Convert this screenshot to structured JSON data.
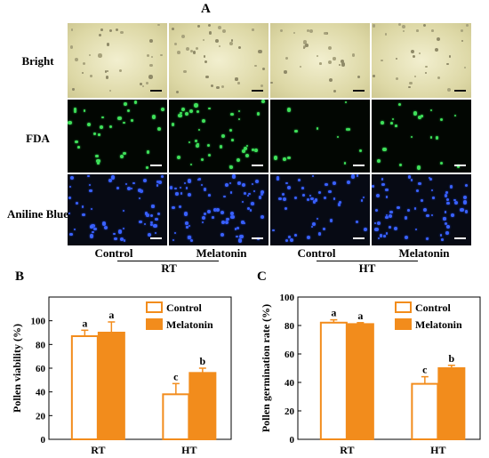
{
  "panel_a": {
    "letter": "A",
    "rows": [
      "Bright",
      "FDA",
      "Aniline Blue"
    ],
    "columns": [
      "Control",
      "Melatonin",
      "Control",
      "Melatonin"
    ],
    "groups": [
      "RT",
      "HT"
    ]
  },
  "panel_b": {
    "letter": "B"
  },
  "panel_c": {
    "letter": "C"
  },
  "chart_data": [
    {
      "type": "bar",
      "panel": "B",
      "categories": [
        "RT",
        "HT"
      ],
      "series": [
        {
          "name": "Control",
          "values": [
            87,
            38
          ],
          "errors": [
            5,
            9
          ],
          "letters": [
            "a",
            "c"
          ],
          "fill": "#ffffff",
          "stroke": "#f28c1c"
        },
        {
          "name": "Melatonin",
          "values": [
            90,
            56
          ],
          "errors": [
            9,
            4
          ],
          "letters": [
            "a",
            "b"
          ],
          "fill": "#f28c1c",
          "stroke": "#f28c1c"
        }
      ],
      "ylabel": "Pollen viability (%)",
      "ylim": [
        0,
        120
      ],
      "yticks": [
        0,
        20,
        40,
        60,
        80,
        100
      ],
      "legend": "top-right"
    },
    {
      "type": "bar",
      "panel": "C",
      "categories": [
        "RT",
        "HT"
      ],
      "series": [
        {
          "name": "Control",
          "values": [
            82,
            39
          ],
          "errors": [
            2,
            5
          ],
          "letters": [
            "a",
            "c"
          ],
          "fill": "#ffffff",
          "stroke": "#f28c1c"
        },
        {
          "name": "Melatonin",
          "values": [
            81,
            50
          ],
          "errors": [
            1,
            2
          ],
          "letters": [
            "a",
            "b"
          ],
          "fill": "#f28c1c",
          "stroke": "#f28c1c"
        }
      ],
      "ylabel": "Pollen germination rate (%)",
      "ylim": [
        0,
        100
      ],
      "yticks": [
        0,
        20,
        40,
        60,
        80,
        100
      ],
      "legend": "top-right"
    }
  ]
}
